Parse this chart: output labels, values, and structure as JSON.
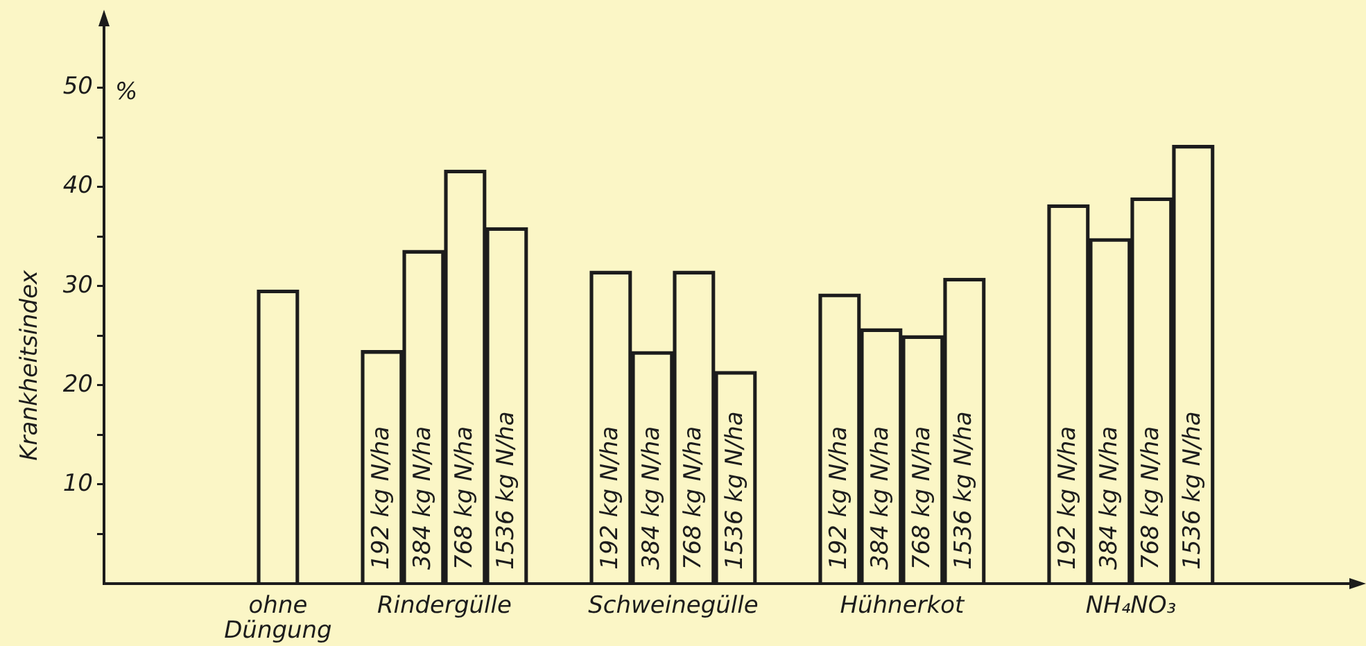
{
  "chart_data": {
    "type": "bar",
    "ylabel": "Krankheitsindex",
    "categories": [
      "ohne Düngung",
      "Rindergülle",
      "Schweinegülle",
      "Hühnerkot",
      "NH₄NO₃"
    ],
    "series": [
      {
        "color": "#1c1c1c",
        "values": [
          29.6,
          null,
          null,
          null,
          null
        ]
      },
      {
        "name": "192 kg N/ha",
        "color": "#1c1c1c",
        "values": [
          null,
          23.5,
          31.5,
          29.2,
          38.2
        ]
      },
      {
        "name": "384 kg N/ha",
        "color": "#1c1c1c",
        "values": [
          null,
          33.6,
          23.4,
          25.7,
          34.8
        ]
      },
      {
        "name": "768 kg N/ha",
        "color": "#1c1c1c",
        "values": [
          null,
          41.7,
          31.5,
          25.0,
          38.9
        ]
      },
      {
        "name": "1536 kg N/ha",
        "color": "#1c1c1c",
        "values": [
          null,
          35.9,
          21.4,
          30.8,
          44.2
        ]
      }
    ],
    "ylim": [
      0,
      57
    ],
    "yticks": [
      {
        "value": 5,
        "label": null
      },
      10,
      {
        "value": 15,
        "label": null
      },
      20,
      {
        "value": 25,
        "label": null
      },
      30,
      {
        "value": 35,
        "label": null
      },
      40,
      {
        "value": 45,
        "label": null
      },
      50
    ],
    "annotations": [
      "%"
    ],
    "grid": false,
    "legend": false
  }
}
